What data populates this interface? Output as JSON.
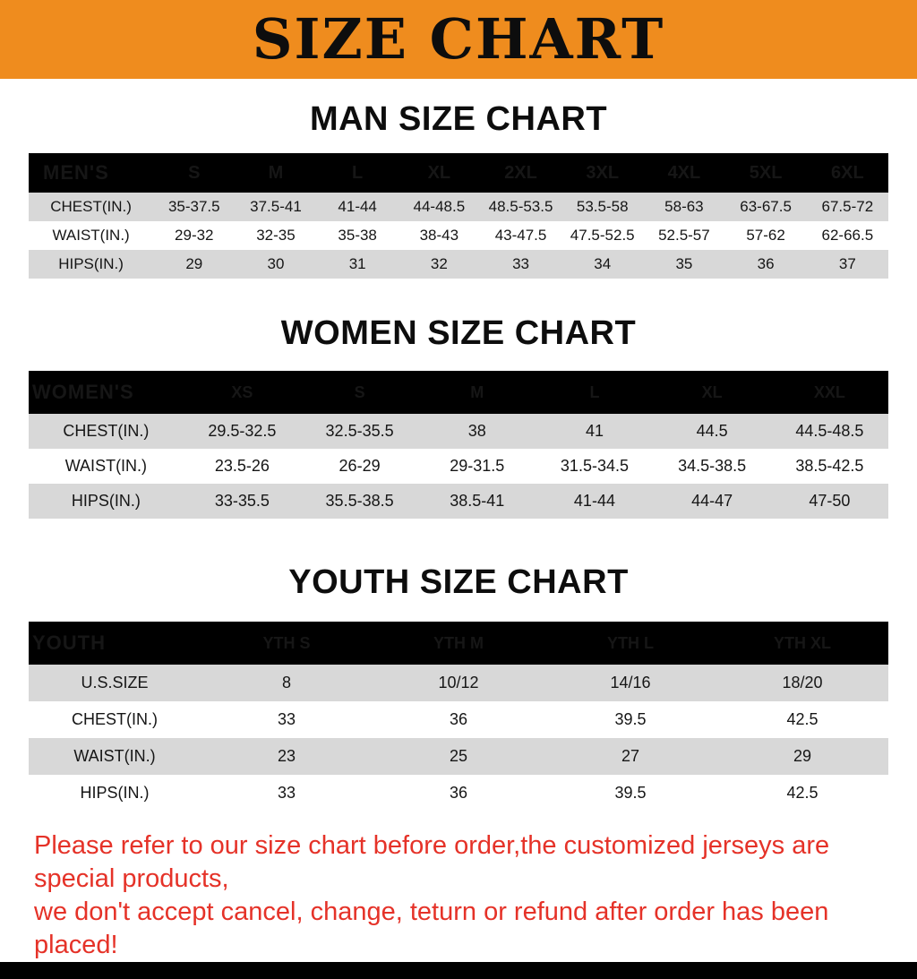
{
  "banner": {
    "title": "SIZE CHART"
  },
  "men": {
    "heading": "MAN SIZE CHART",
    "table": {
      "header": [
        "MEN'S",
        "S",
        "M",
        "L",
        "XL",
        "2XL",
        "3XL",
        "4XL",
        "5XL",
        "6XL"
      ],
      "rows": [
        [
          "CHEST(IN.)",
          "35-37.5",
          "37.5-41",
          "41-44",
          "44-48.5",
          "48.5-53.5",
          "53.5-58",
          "58-63",
          "63-67.5",
          "67.5-72"
        ],
        [
          "WAIST(IN.)",
          "29-32",
          "32-35",
          "35-38",
          "38-43",
          "43-47.5",
          "47.5-52.5",
          "52.5-57",
          "57-62",
          "62-66.5"
        ],
        [
          "HIPS(IN.)",
          "29",
          "30",
          "31",
          "32",
          "33",
          "34",
          "35",
          "36",
          "37"
        ]
      ]
    }
  },
  "women": {
    "heading": "WOMEN SIZE CHART",
    "table": {
      "header": [
        "WOMEN'S",
        "XS",
        "S",
        "M",
        "L",
        "XL",
        "XXL"
      ],
      "rows": [
        [
          "CHEST(IN.)",
          "29.5-32.5",
          "32.5-35.5",
          "38",
          "41",
          "44.5",
          "44.5-48.5"
        ],
        [
          "WAIST(IN.)",
          "23.5-26",
          "26-29",
          "29-31.5",
          "31.5-34.5",
          "34.5-38.5",
          "38.5-42.5"
        ],
        [
          "HIPS(IN.)",
          "33-35.5",
          "35.5-38.5",
          "38.5-41",
          "41-44",
          "44-47",
          "47-50"
        ]
      ]
    }
  },
  "youth": {
    "heading": "YOUTH SIZE CHART",
    "table": {
      "header": [
        "YOUTH",
        "YTH S",
        "YTH M",
        "YTH L",
        "YTH XL"
      ],
      "rows": [
        [
          "U.S.SIZE",
          "8",
          "10/12",
          "14/16",
          "18/20"
        ],
        [
          "CHEST(IN.)",
          "33",
          "36",
          "39.5",
          "42.5"
        ],
        [
          "WAIST(IN.)",
          "23",
          "25",
          "27",
          "29"
        ],
        [
          "HIPS(IN.)",
          "33",
          "36",
          "39.5",
          "42.5"
        ]
      ]
    }
  },
  "note": {
    "line1": "Please refer to our size chart before order,the customized jerseys are special products,",
    "line2": "we don't accept cancel, change, teturn or refund after order has been placed!"
  },
  "colors": {
    "banner_bg": "#ef8c1e",
    "header_bg": "#000000",
    "row_gray": "#d8d8d8",
    "note_red": "#e53228"
  }
}
